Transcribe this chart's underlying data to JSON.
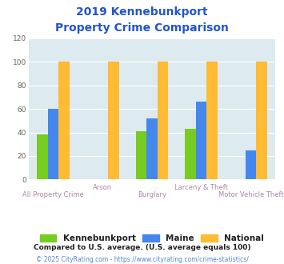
{
  "title_line1": "2019 Kennebunkport",
  "title_line2": "Property Crime Comparison",
  "categories": [
    "All Property Crime",
    "Arson",
    "Burglary",
    "Larceny & Theft",
    "Motor Vehicle Theft"
  ],
  "kennebunkport": [
    38,
    0,
    41,
    43,
    0
  ],
  "maine": [
    60,
    0,
    52,
    66,
    25
  ],
  "national": [
    100,
    100,
    100,
    100,
    100
  ],
  "color_kennebunkport": "#77cc22",
  "color_maine": "#4488ee",
  "color_national": "#ffbb33",
  "ylabel_vals": [
    0,
    20,
    40,
    60,
    80,
    100,
    120
  ],
  "ylim": [
    0,
    120
  ],
  "bg_color": "#ddeaf0",
  "title_color": "#2255cc",
  "xlabel_color": "#aa88aa",
  "legend_labels": [
    "Kennebunkport",
    "Maine",
    "National"
  ],
  "footnote1": "Compared to U.S. average. (U.S. average equals 100)",
  "footnote2": "© 2025 CityRating.com - https://www.cityrating.com/crime-statistics/",
  "footnote1_color": "#222222",
  "footnote2_color": "#5588cc"
}
